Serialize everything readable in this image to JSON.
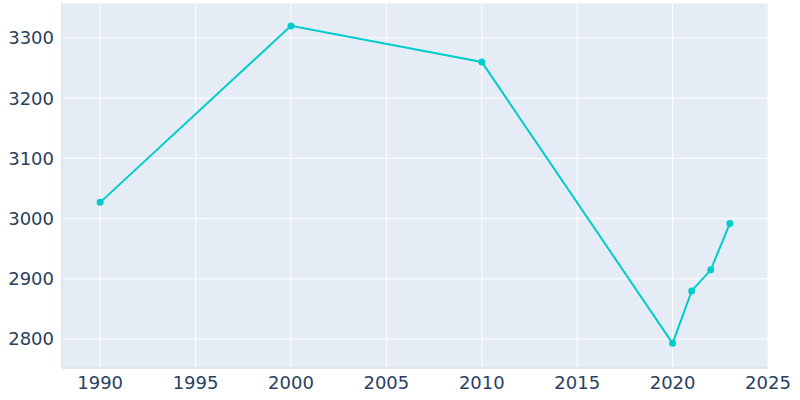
{
  "chart_data": {
    "type": "line",
    "x": [
      1990,
      2000,
      2010,
      2020,
      2021,
      2022,
      2023
    ],
    "values": [
      3027,
      3320,
      3260,
      2793,
      2880,
      2915,
      2992
    ],
    "color": "#00cccc",
    "marker": "circle",
    "xlim": [
      1988,
      2025
    ],
    "xticks": [
      1990,
      1995,
      2000,
      2005,
      2010,
      2015,
      2020,
      2025
    ],
    "ylim": [
      2752,
      3358
    ],
    "yticks": [
      2800,
      2900,
      3000,
      3100,
      3200,
      3300
    ],
    "grid": true
  }
}
